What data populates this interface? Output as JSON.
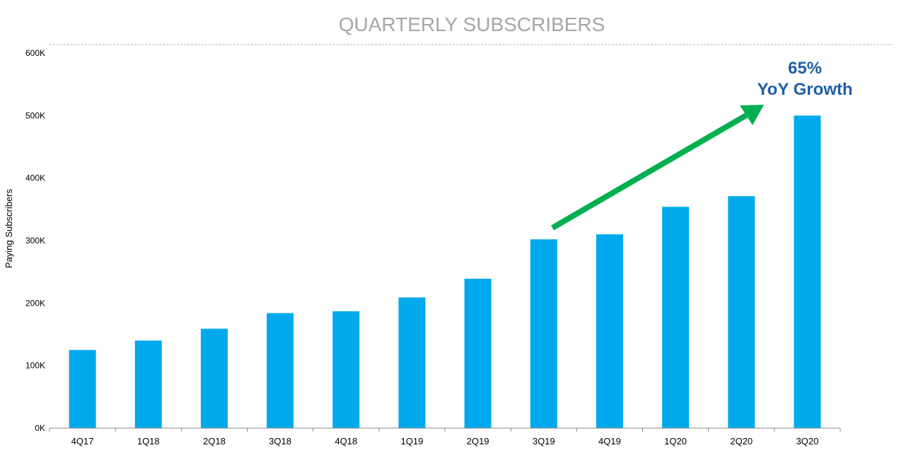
{
  "chart_data": {
    "type": "bar",
    "title": "QUARTERLY SUBSCRIBERS",
    "xlabel": "",
    "ylabel": "Paying Subscribers",
    "categories": [
      "4Q17",
      "1Q18",
      "2Q18",
      "3Q18",
      "4Q18",
      "1Q19",
      "2Q19",
      "3Q19",
      "4Q19",
      "1Q20",
      "2Q20",
      "3Q20"
    ],
    "values": [
      125000,
      140000,
      159000,
      184000,
      187000,
      209000,
      239000,
      302000,
      310000,
      354000,
      371000,
      500000
    ],
    "ylim": [
      0,
      600000
    ],
    "yticks": [
      0,
      100000,
      200000,
      300000,
      400000,
      500000,
      600000
    ],
    "ytick_labels": [
      "0K",
      "100K",
      "200K",
      "300K",
      "400K",
      "500K",
      "600K"
    ],
    "grid": false,
    "bar_color": "#00a9ec",
    "annotation": {
      "line1": "65%",
      "line2": "YoY Growth",
      "color": "#1f5fa8",
      "arrow_color": "#00b050"
    }
  }
}
